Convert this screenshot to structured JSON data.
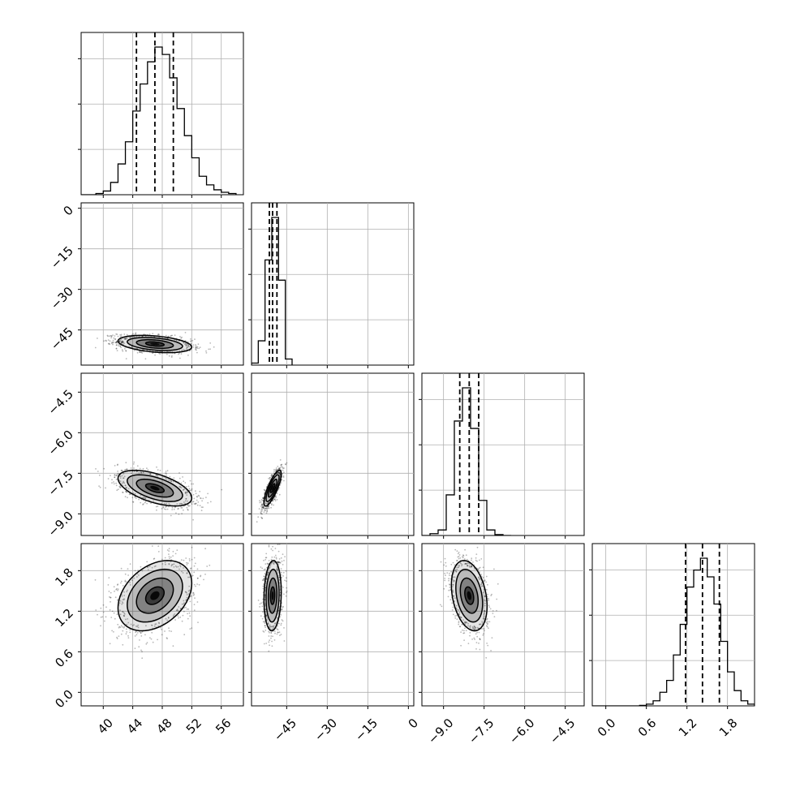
{
  "chart_data": {
    "type": "corner",
    "parameters": [
      {
        "range": [
          37,
          59
        ],
        "ticks": [
          {
            "value": 40,
            "label": "40"
          },
          {
            "value": 44,
            "label": "44"
          },
          {
            "value": 48,
            "label": "48"
          },
          {
            "value": 52,
            "label": "52"
          },
          {
            "value": 56,
            "label": "56"
          }
        ],
        "quantiles": [
          44.5,
          47.0,
          49.5
        ],
        "hist": {
          "edges": [
            37,
            38,
            39,
            40,
            41,
            42,
            43,
            44,
            45,
            46,
            47,
            48,
            49,
            50,
            51,
            52,
            53,
            54,
            55,
            56,
            57,
            58
          ],
          "counts": [
            0,
            0,
            1,
            3,
            10,
            25,
            43,
            68,
            90,
            108,
            120,
            114,
            95,
            70,
            48,
            30,
            15,
            8,
            4,
            2,
            1
          ]
        }
      },
      {
        "range": [
          -58,
          2
        ],
        "ticks": [
          {
            "value": 0,
            "label": "0"
          },
          {
            "value": -15,
            "label": "−15"
          },
          {
            "value": -30,
            "label": "−30"
          },
          {
            "value": -45,
            "label": "−45"
          }
        ],
        "quantiles": [
          -51.4,
          -50.2,
          -48.6
        ],
        "hist": {
          "edges": [
            -58,
            -55.5,
            -53,
            -50.5,
            -48,
            -45.5,
            -43
          ],
          "counts": [
            1,
            12,
            52,
            73,
            42,
            3
          ]
        }
      },
      {
        "range": [
          -9.8,
          -3.8
        ],
        "ticks": [
          {
            "value": -9.0,
            "label": "−9.0"
          },
          {
            "value": -7.5,
            "label": "−7.5"
          },
          {
            "value": -6.0,
            "label": "−6.0"
          },
          {
            "value": -4.5,
            "label": "−4.5"
          }
        ],
        "quantiles": [
          -8.4,
          -8.05,
          -7.7
        ],
        "hist": {
          "edges": [
            -9.8,
            -9.5,
            -9.2,
            -8.9,
            -8.6,
            -8.3,
            -8.0,
            -7.7,
            -7.4,
            -7.1,
            -6.8,
            -6.5
          ],
          "counts": [
            0,
            1,
            3,
            22,
            62,
            80,
            58,
            19,
            3,
            0.5,
            0
          ]
        }
      },
      {
        "range": [
          -0.2,
          2.2
        ],
        "ticks": [
          {
            "value": 0.0,
            "label": "0.0"
          },
          {
            "value": 0.6,
            "label": "0.6"
          },
          {
            "value": 1.2,
            "label": "1.2"
          },
          {
            "value": 1.8,
            "label": "1.8"
          }
        ],
        "quantiles": [
          1.18,
          1.43,
          1.68
        ],
        "hist": {
          "edges": [
            -0.2,
            -0.1,
            0.0,
            0.1,
            0.2,
            0.3,
            0.4,
            0.5,
            0.6,
            0.7,
            0.8,
            0.9,
            1.0,
            1.1,
            1.2,
            1.3,
            1.4,
            1.5,
            1.6,
            1.7,
            1.8,
            1.9,
            2.0,
            2.1,
            2.2
          ],
          "counts": [
            0,
            0,
            0,
            0,
            0,
            0,
            0,
            0.3,
            1,
            3,
            8,
            15,
            30,
            48,
            70,
            80,
            87,
            76,
            60,
            38,
            20,
            9,
            3,
            1
          ]
        }
      }
    ],
    "pairs": [
      {
        "row": 1,
        "col": 0,
        "mean": [
          47,
          -50.2
        ],
        "sd": [
          2.5,
          1.6
        ],
        "corr": -0.35,
        "density_ellipses": [
          0.5,
          1.0,
          1.5,
          2.0
        ]
      },
      {
        "row": 2,
        "col": 0,
        "mean": [
          47,
          -8.05
        ],
        "sd": [
          2.5,
          0.33
        ],
        "corr": -0.55,
        "density_ellipses": [
          0.5,
          1.0,
          1.5,
          2.0
        ]
      },
      {
        "row": 2,
        "col": 1,
        "mean": [
          -50.2,
          -8.05
        ],
        "sd": [
          1.6,
          0.33
        ],
        "corr": 0.8,
        "density_ellipses": [
          0.5,
          1.0,
          1.5,
          2.0
        ]
      },
      {
        "row": 3,
        "col": 0,
        "mean": [
          47,
          1.43
        ],
        "sd": [
          2.5,
          0.26
        ],
        "corr": 0.35,
        "density_ellipses": [
          0.5,
          1.0,
          1.5,
          2.0
        ]
      },
      {
        "row": 3,
        "col": 1,
        "mean": [
          -50.2,
          1.43
        ],
        "sd": [
          1.6,
          0.26
        ],
        "corr": 0.1,
        "density_ellipses": [
          0.5,
          1.0,
          1.5,
          2.0
        ]
      },
      {
        "row": 3,
        "col": 2,
        "mean": [
          -8.05,
          1.43
        ],
        "sd": [
          0.33,
          0.26
        ],
        "corr": -0.3,
        "density_ellipses": [
          0.5,
          1.0,
          1.5,
          2.0
        ]
      }
    ],
    "grid": true,
    "scatter_color": "#000000",
    "contour_color": "#000000",
    "fill_color": "#000000",
    "frame_color": "#000000",
    "grid_color": "#b0b0b0"
  }
}
